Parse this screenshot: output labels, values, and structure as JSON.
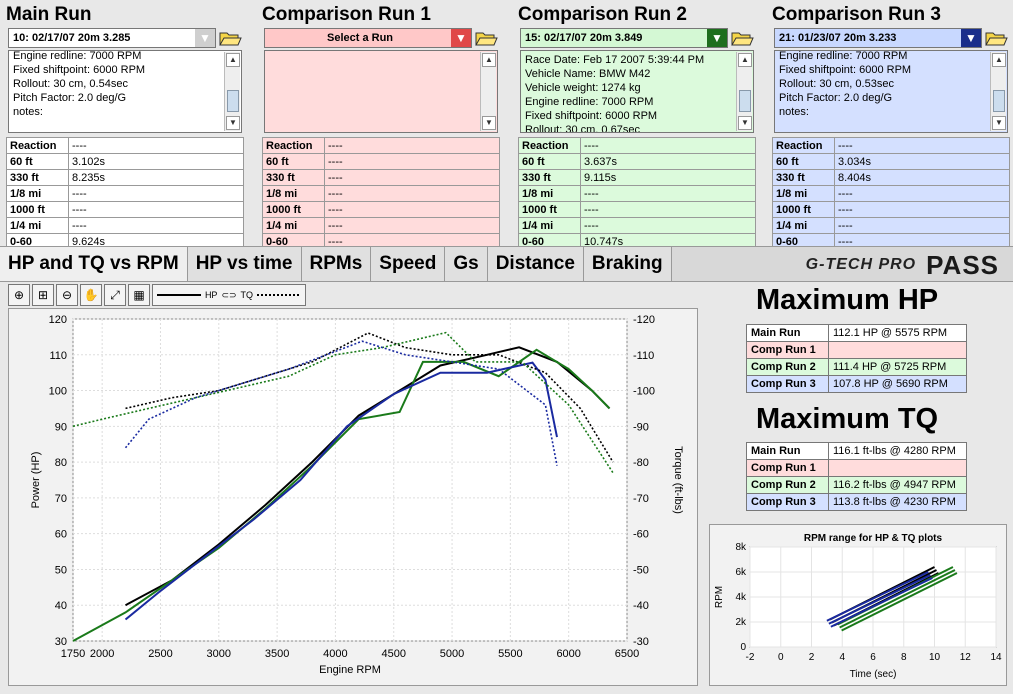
{
  "runs": [
    {
      "title": "Main Run",
      "selector": "10:  02/17/07 20m  3.285",
      "notes": [
        "Engine redline: 7000 RPM",
        "Fixed shiftpoint: 6000 RPM",
        "Rollout: 30 cm, 0.54sec",
        "Pitch Factor: 2.0 deg/G",
        "notes:"
      ],
      "stats": [
        [
          "Reaction",
          "----"
        ],
        [
          "60 ft",
          "3.102s"
        ],
        [
          "330 ft",
          "8.235s"
        ],
        [
          "1/8 mi",
          "----"
        ],
        [
          "1000 ft",
          "----"
        ],
        [
          "1/4 mi",
          "----"
        ],
        [
          "0-60",
          "9.624s"
        ]
      ],
      "color": "#ffffff",
      "selector_color": "#ffffff",
      "arrow_color": "#cfcfcf"
    },
    {
      "title": "Comparison Run 1",
      "selector": "Select a Run",
      "notes": [],
      "stats": [
        [
          "Reaction",
          "----"
        ],
        [
          "60 ft",
          "----"
        ],
        [
          "330 ft",
          "----"
        ],
        [
          "1/8 mi",
          "----"
        ],
        [
          "1000 ft",
          "----"
        ],
        [
          "1/4 mi",
          "----"
        ],
        [
          "0-60",
          "----"
        ]
      ],
      "color": "#ffdcdc",
      "selector_color": "#ffc8c8",
      "arrow_color": "#e04848"
    },
    {
      "title": "Comparison Run 2",
      "selector": "15:  02/17/07 20m  3.849",
      "notes": [
        "Race Date: Feb 17 2007  5:39:44 PM",
        "Vehicle Name: BMW M42",
        "Vehicle weight: 1274 kg",
        "Engine redline: 7000 RPM",
        "Fixed shiftpoint: 6000 RPM",
        "Rollout: 30 cm, 0.67sec"
      ],
      "stats": [
        [
          "Reaction",
          "----"
        ],
        [
          "60 ft",
          "3.637s"
        ],
        [
          "330 ft",
          "9.115s"
        ],
        [
          "1/8 mi",
          "----"
        ],
        [
          "1000 ft",
          "----"
        ],
        [
          "1/4 mi",
          "----"
        ],
        [
          "0-60",
          "10.747s"
        ]
      ],
      "color": "#dcfadc",
      "selector_color": "#d4f8d4",
      "arrow_color": "#1e6e1e"
    },
    {
      "title": "Comparison Run 3",
      "selector": "21:  01/23/07 20m  3.233",
      "notes": [
        "Engine redline: 7000 RPM",
        "Fixed shiftpoint: 6000 RPM",
        "Rollout: 30 cm, 0.53sec",
        "Pitch Factor: 2.0 deg/G",
        "notes:"
      ],
      "stats": [
        [
          "Reaction",
          "----"
        ],
        [
          "60 ft",
          "3.034s"
        ],
        [
          "330 ft",
          "8.404s"
        ],
        [
          "1/8 mi",
          "----"
        ],
        [
          "1000 ft",
          "----"
        ],
        [
          "1/4 mi",
          "----"
        ],
        [
          "0-60",
          "----"
        ]
      ],
      "color": "#d4e0ff",
      "selector_color": "#c8d8ff",
      "arrow_color": "#1a2e8a"
    }
  ],
  "tabs": [
    "HP and TQ vs RPM",
    "HP vs time",
    "RPMs",
    "Speed",
    "Gs",
    "Distance",
    "Braking"
  ],
  "logo": {
    "brand": "G-TECH PRO",
    "pass": "PASS"
  },
  "toolbar": {
    "legend_hp": "HP",
    "legend_tq": "TQ"
  },
  "max_hp": {
    "title": "Maximum HP",
    "rows": [
      [
        "Main Run",
        "112.1 HP @ 5575 RPM"
      ],
      [
        "Comp Run 1",
        ""
      ],
      [
        "Comp Run 2",
        "111.4 HP @ 5725 RPM"
      ],
      [
        "Comp Run 3",
        "107.8 HP @ 5690 RPM"
      ]
    ]
  },
  "max_tq": {
    "title": "Maximum TQ",
    "rows": [
      [
        "Main Run",
        "116.1 ft-lbs @ 4280 RPM"
      ],
      [
        "Comp Run 1",
        ""
      ],
      [
        "Comp Run 2",
        "116.2 ft-lbs @ 4947 RPM"
      ],
      [
        "Comp Run 3",
        "113.8 ft-lbs @ 4230 RPM"
      ]
    ]
  },
  "chart_data": [
    {
      "type": "line",
      "xlabel": "Engine RPM",
      "ylabel": "Power (HP)",
      "y2label": "Torque (ft-lbs)",
      "xlim": [
        1750,
        6500
      ],
      "ylim": [
        30,
        120
      ],
      "y2lim": [
        30,
        120
      ],
      "xticks": [
        1750,
        2000,
        2500,
        3000,
        3500,
        4000,
        4500,
        5000,
        5500,
        6000,
        6500
      ],
      "yticks": [
        30,
        40,
        50,
        60,
        70,
        80,
        90,
        100,
        110,
        120
      ],
      "grid": true,
      "series": [
        {
          "color": "#000000",
          "style": "solid",
          "x": [
            2200,
            2600,
            3000,
            3400,
            3800,
            4200,
            4600,
            4900,
            5300,
            5575,
            5900,
            6200,
            6350
          ],
          "y": [
            40,
            47,
            57,
            68,
            80,
            93,
            101,
            107,
            110,
            112.1,
            108,
            100,
            95
          ]
        },
        {
          "color": "#1a7a1a",
          "style": "solid",
          "x": [
            1750,
            2200,
            2600,
            3000,
            3400,
            3800,
            4200,
            4550,
            4750,
            5100,
            5400,
            5725,
            6000,
            6200,
            6350
          ],
          "y": [
            30,
            38,
            47,
            56,
            67,
            79,
            92,
            94,
            108,
            108,
            104,
            111.4,
            106,
            100,
            95
          ]
        },
        {
          "color": "#1a2aa0",
          "style": "solid",
          "x": [
            2200,
            2500,
            2900,
            3300,
            3700,
            4100,
            4500,
            4900,
            5300,
            5690,
            5800,
            5900
          ],
          "y": [
            36,
            44,
            54,
            64,
            75,
            90,
            99,
            105,
            105,
            107.8,
            103,
            87
          ]
        },
        {
          "color": "#000000",
          "style": "dotted",
          "x": [
            2200,
            2600,
            3000,
            3400,
            3800,
            4280,
            4600,
            5000,
            5400,
            5800,
            6100,
            6380
          ],
          "y": [
            95,
            98,
            100,
            104,
            108,
            116.1,
            112,
            110,
            110,
            105,
            95,
            80
          ]
        },
        {
          "color": "#1a7a1a",
          "style": "dotted",
          "x": [
            1750,
            2000,
            2400,
            2800,
            3200,
            3600,
            4000,
            4400,
            4947,
            5200,
            5600,
            6000,
            6380
          ],
          "y": [
            90,
            92,
            95,
            98,
            101,
            104,
            110,
            112,
            116.2,
            108,
            108,
            96,
            77
          ]
        },
        {
          "color": "#1a2aa0",
          "style": "dotted",
          "x": [
            2200,
            2400,
            2800,
            3200,
            3600,
            4230,
            4600,
            5000,
            5400,
            5800,
            5900
          ],
          "y": [
            84,
            92,
            98,
            102,
            106,
            113.8,
            110,
            108,
            106,
            96,
            79
          ]
        }
      ]
    },
    {
      "type": "line",
      "title": "RPM range for HP & TQ plots",
      "xlabel": "Time (sec)",
      "ylabel": "RPM",
      "xlim": [
        -2,
        14
      ],
      "ylim": [
        0,
        8000
      ],
      "xticks": [
        -2,
        0,
        2,
        4,
        6,
        8,
        10,
        12,
        14
      ],
      "yticks": [
        0,
        2000,
        4000,
        6000,
        8000
      ],
      "ytick_labels": [
        "0",
        "2k",
        "4k",
        "6k",
        "8k"
      ],
      "series": [
        {
          "color": "#000000",
          "x": [
            3.2,
            10.0
          ],
          "y": [
            2200,
            6400
          ]
        },
        {
          "color": "#1a7a1a",
          "x": [
            3.7,
            11.2
          ],
          "y": [
            1800,
            6400
          ]
        },
        {
          "color": "#1a2aa0",
          "x": [
            3.0,
            9.6
          ],
          "y": [
            2100,
            6000
          ]
        }
      ]
    }
  ]
}
